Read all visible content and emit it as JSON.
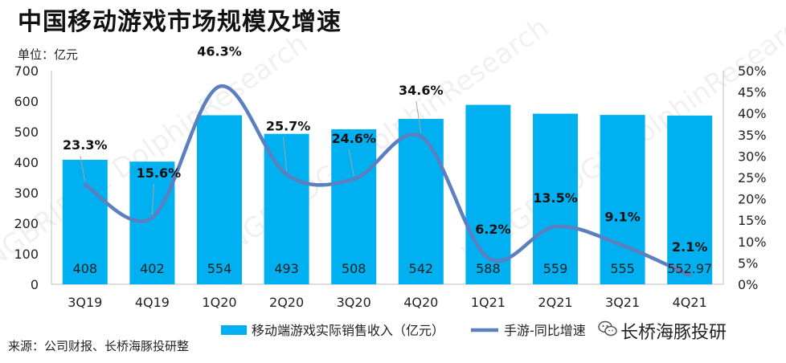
{
  "title": "中国移动游戏市场规模及增速",
  "unit_label": "单位：亿元",
  "source": "来源：公司财报、长桥海豚投研整",
  "brand": "长桥海豚投研",
  "watermark": "LONGBRIDGE DolphinResearch",
  "colors": {
    "bar": "#00b0f0",
    "line": "#5b7fbf",
    "text": "#222222"
  },
  "chart_data": {
    "type": "bar",
    "categories": [
      "3Q19",
      "4Q19",
      "1Q20",
      "2Q20",
      "3Q20",
      "4Q20",
      "1Q21",
      "2Q21",
      "3Q21",
      "4Q21"
    ],
    "series": [
      {
        "name": "移动端游戏实际销售收入（亿元）",
        "type": "bar",
        "axis": "left",
        "values": [
          408,
          402,
          554,
          493,
          508,
          542,
          588,
          559,
          555,
          552.97
        ],
        "labels": [
          "408",
          "402",
          "554",
          "493",
          "508",
          "542",
          "588",
          "559",
          "555",
          "552.97"
        ]
      },
      {
        "name": "手游-同比增速",
        "type": "line",
        "axis": "right",
        "values": [
          23.3,
          15.6,
          46.3,
          25.7,
          24.6,
          34.6,
          6.2,
          13.5,
          9.1,
          2.1
        ],
        "labels": [
          "23.3%",
          "15.6%",
          "46.3%",
          "25.7%",
          "24.6%",
          "34.6%",
          "6.2%",
          "13.5%",
          "9.1%",
          "2.1%"
        ]
      }
    ],
    "y_left": {
      "min": 0,
      "max": 700,
      "ticks": [
        "0",
        "100",
        "200",
        "300",
        "400",
        "500",
        "600",
        "700"
      ]
    },
    "y_right": {
      "min": 0,
      "max": 50,
      "ticks": [
        "0%",
        "5%",
        "10%",
        "15%",
        "20%",
        "25%",
        "30%",
        "35%",
        "40%",
        "45%",
        "50%"
      ]
    },
    "grid": false,
    "legend_position": "bottom"
  }
}
